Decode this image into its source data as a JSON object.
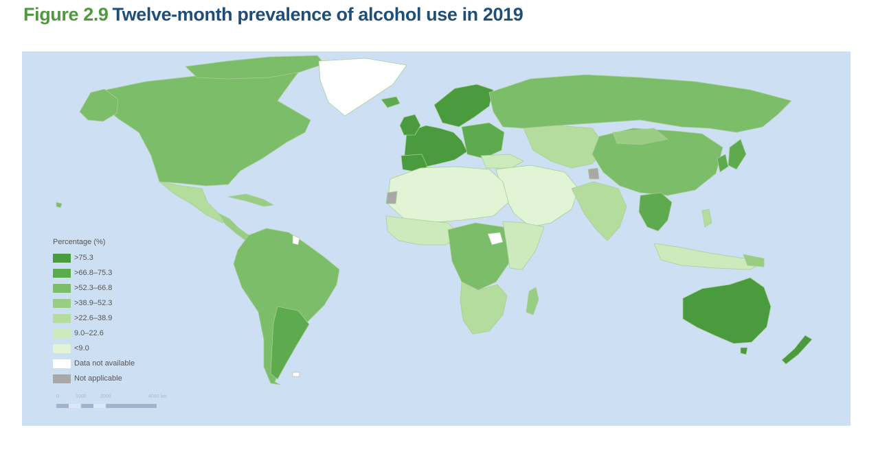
{
  "figure": {
    "number": "Figure 2.9",
    "title": "Twelve-month prevalence of alcohol use in 2019"
  },
  "legend": {
    "title": "Percentage (%)",
    "items": [
      {
        "label": ">75.3",
        "color": "#4a9a3e"
      },
      {
        "label": ">66.8–75.3",
        "color": "#5eab4f"
      },
      {
        "label": ">52.3–66.8",
        "color": "#7cbd69"
      },
      {
        "label": ">38.9–52.3",
        "color": "#99cd83"
      },
      {
        "label": ">22.6–38.9",
        "color": "#b3dc9d"
      },
      {
        "label": "9.0–22.6",
        "color": "#cdeabc"
      },
      {
        "label": "<9.0",
        "color": "#e2f4d6"
      },
      {
        "label": "Data not available",
        "color": "#ffffff"
      },
      {
        "label": "Not applicable",
        "color": "#a8a8a8"
      }
    ]
  },
  "scale_bar": {
    "labels": [
      "0",
      "1000",
      "2000",
      "4000 km"
    ]
  },
  "colors": {
    "ocean": "#cddff2",
    "title_number": "#4e9a3c",
    "title_text": "#1f4e79",
    "borders": "#a8cf95"
  }
}
